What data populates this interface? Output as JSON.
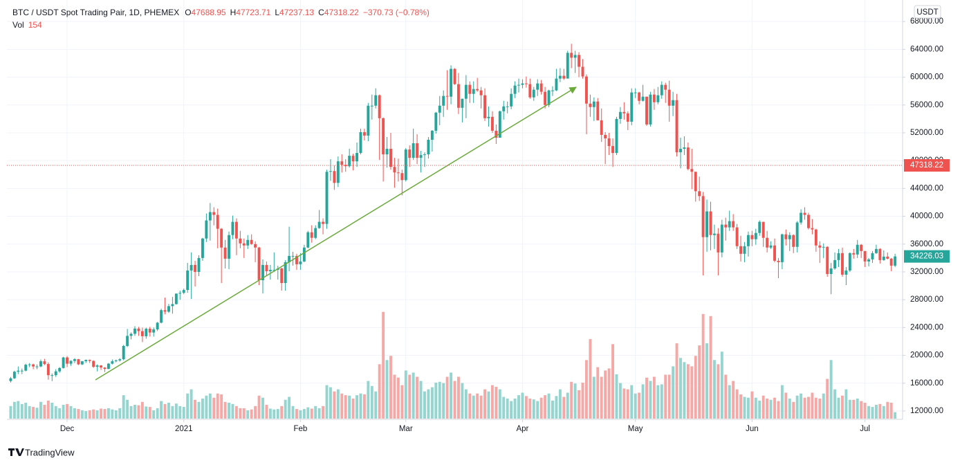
{
  "chart_data": {
    "type": "candlestick",
    "title": "BTC / USDT Spot Trading Pair, 1D, PHEMEX",
    "quote_currency": "USDT",
    "ohlc_legend": {
      "labels": [
        "O",
        "H",
        "L",
        "C"
      ],
      "values": [
        47688.95,
        47723.71,
        47237.13,
        47318.22
      ],
      "change": "−370.73 (−0.78%)"
    },
    "volume_legend": {
      "label": "Vol",
      "value": 154
    },
    "crosshair_price": 47318.22,
    "last_price": 34226.03,
    "open": [
      16300,
      16700,
      17650,
      17800,
      17800,
      18650,
      18700,
      18400,
      18400,
      19150,
      18750,
      17150,
      17150,
      17700,
      18180,
      19700,
      18800,
      19200,
      19450,
      18700,
      19150,
      19350,
      19200,
      18350,
      18550,
      18250,
      18050,
      18800,
      19150,
      19270,
      19440,
      21350,
      22800,
      23100,
      23850,
      23480,
      22750,
      23830,
      23280,
      23730,
      24700,
      26500,
      26280,
      27080,
      27370,
      28880,
      28990,
      29400,
      32200,
      33000,
      32000,
      34000,
      36800,
      39400,
      40600,
      40200,
      38200,
      35500,
      33900,
      37300,
      39200,
      36800,
      36100,
      35800,
      36600,
      36000,
      35500,
      30800,
      33000,
      32100,
      32300,
      32300,
      32500,
      30400,
      33400,
      34300,
      34300,
      33100,
      33500,
      35500,
      37700,
      36900,
      38300,
      39200,
      38900,
      46400,
      46500,
      44800,
      47900,
      47400,
      47200,
      48700,
      47900,
      49100,
      52100,
      51600,
      55900,
      55900,
      57400,
      54100,
      48900,
      49700,
      47100,
      46300,
      46200,
      45200,
      49600,
      48400,
      50500,
      48400,
      48800,
      48900,
      51000,
      52300,
      54900,
      55900,
      57300,
      57200,
      61200,
      59000,
      55600,
      56900,
      58900,
      57600,
      58300,
      58100,
      57400,
      54100,
      54300,
      52300,
      51300,
      55100,
      55800,
      55800,
      57600,
      58800,
      58900,
      59100,
      59000,
      57100,
      58200,
      59100,
      57900,
      56000,
      58100,
      58100,
      59800,
      60200,
      59800,
      63500,
      62800,
      63200,
      61500,
      60100,
      56200,
      55700,
      56500,
      53800,
      51700,
      51200,
      50100,
      49100,
      54000,
      55000,
      54800,
      53600,
      57800,
      57800,
      56600,
      57200,
      53200,
      57500,
      56400,
      57400,
      58900,
      58200,
      55900,
      56700,
      49200,
      49700,
      49900,
      46800,
      46400,
      43600,
      42900,
      37000,
      40700,
      37300,
      37500,
      34800,
      38800,
      38400,
      39300,
      38400,
      35700,
      34600,
      35700,
      37300,
      36700,
      37600,
      39200,
      36900,
      35500,
      35800,
      33600,
      33400,
      37400,
      36700,
      37300,
      35600,
      39100,
      40500,
      40200,
      38300,
      38100,
      35800,
      35500,
      35600,
      31700,
      32500,
      33700,
      34700,
      31600,
      32200,
      34700,
      34500,
      35900,
      35000,
      33500,
      33800,
      34700,
      35300,
      33700,
      34200,
      33900,
      32900
    ],
    "high": [
      16900,
      17800,
      18400,
      18100,
      18800,
      18900,
      18800,
      18700,
      19400,
      19500,
      19000,
      17400,
      18000,
      18300,
      19800,
      19900,
      19300,
      19600,
      19500,
      19200,
      19400,
      19400,
      19300,
      18700,
      18600,
      18300,
      18900,
      19400,
      19400,
      19600,
      21500,
      23800,
      23300,
      24200,
      24100,
      24000,
      24000,
      24100,
      24000,
      24800,
      26700,
      28300,
      27400,
      28400,
      28900,
      29300,
      29600,
      33300,
      34800,
      33600,
      34400,
      36900,
      40400,
      41900,
      41300,
      41100,
      38300,
      36600,
      37800,
      40100,
      39700,
      37900,
      36800,
      37300,
      37400,
      36400,
      35600,
      33800,
      33500,
      33000,
      34800,
      32900,
      32600,
      33700,
      38500,
      34900,
      34600,
      34700,
      35900,
      37900,
      38700,
      38700,
      40900,
      39700,
      46700,
      48200,
      47300,
      48600,
      48900,
      48200,
      49700,
      49000,
      50600,
      52600,
      52600,
      56300,
      57500,
      58400,
      57500,
      54200,
      51400,
      52000,
      48400,
      48300,
      46700,
      49800,
      50200,
      52600,
      51800,
      49400,
      49200,
      51400,
      52400,
      55000,
      57300,
      58100,
      61000,
      61700,
      61300,
      60600,
      56900,
      60300,
      59400,
      59400,
      59900,
      58600,
      58400,
      55800,
      55100,
      53200,
      55200,
      56600,
      56500,
      58400,
      59400,
      59800,
      59700,
      60100,
      59800,
      58600,
      59700,
      59600,
      58600,
      58200,
      58700,
      61200,
      61300,
      61200,
      63800,
      64800,
      63800,
      63600,
      62600,
      60400,
      57500,
      57100,
      57000,
      55500,
      52100,
      52000,
      51200,
      54300,
      55700,
      56400,
      55100,
      58400,
      58400,
      57900,
      58900,
      57200,
      57900,
      58300,
      58600,
      59400,
      59200,
      59500,
      57900,
      57600,
      51300,
      51500,
      50600,
      49700,
      46400,
      45700,
      43500,
      42400,
      42100,
      38800,
      38300,
      39500,
      39800,
      40800,
      40300,
      38900,
      37200,
      36300,
      37800,
      37900,
      38200,
      39400,
      39200,
      37900,
      36400,
      36800,
      34000,
      37500,
      38100,
      37700,
      37400,
      39300,
      41000,
      41300,
      40500,
      39600,
      38200,
      36400,
      36100,
      35700,
      33300,
      34800,
      35300,
      35500,
      32700,
      34800,
      35300,
      36600,
      36000,
      35000,
      34000,
      35000,
      35900,
      35400,
      35100,
      34800,
      34000,
      34600
    ],
    "low": [
      16100,
      16600,
      17300,
      17300,
      17700,
      18300,
      18000,
      18000,
      18300,
      18600,
      16500,
      16300,
      16900,
      17500,
      18100,
      18300,
      18500,
      18900,
      18600,
      18600,
      18900,
      18900,
      18200,
      17700,
      17900,
      17600,
      18000,
      18700,
      19000,
      19100,
      19300,
      21200,
      22300,
      22800,
      22800,
      21900,
      22400,
      22700,
      22700,
      23500,
      24600,
      25900,
      26100,
      26000,
      27300,
      28000,
      28800,
      29000,
      28100,
      29900,
      31400,
      33600,
      36300,
      36500,
      38700,
      35400,
      30400,
      32500,
      32400,
      36700,
      34400,
      35400,
      34000,
      35300,
      35900,
      33400,
      30100,
      28900,
      31400,
      30900,
      32000,
      30900,
      29300,
      29300,
      32100,
      32900,
      32300,
      32300,
      33400,
      35400,
      36200,
      36700,
      38200,
      37400,
      38200,
      45100,
      43800,
      44200,
      46300,
      46400,
      47000,
      46600,
      47100,
      48900,
      50900,
      50800,
      53900,
      55500,
      48100,
      45000,
      47000,
      46700,
      44100,
      45000,
      43000,
      45000,
      47100,
      48100,
      47500,
      46300,
      47100,
      48300,
      49300,
      51900,
      53100,
      54300,
      55300,
      56100,
      58900,
      54700,
      53500,
      54100,
      56300,
      56300,
      57900,
      55500,
      53700,
      52900,
      52000,
      50400,
      51300,
      53900,
      54800,
      55400,
      57000,
      57800,
      58400,
      58500,
      56900,
      56600,
      57300,
      57500,
      55500,
      55700,
      57300,
      58000,
      59300,
      59600,
      59800,
      61300,
      60600,
      60000,
      59800,
      51800,
      54300,
      53700,
      53800,
      50700,
      47500,
      48800,
      47100,
      48800,
      53300,
      53900,
      52400,
      53100,
      57000,
      56100,
      56500,
      53000,
      52900,
      55300,
      56100,
      56900,
      56300,
      53600,
      54400,
      48600,
      46900,
      48800,
      46600,
      43900,
      42100,
      42200,
      31500,
      34900,
      35100,
      35300,
      31500,
      34100,
      36500,
      37900,
      37900,
      35300,
      33500,
      33400,
      34200,
      35700,
      35900,
      37200,
      35600,
      34800,
      35300,
      33400,
      31100,
      32400,
      35800,
      35000,
      34700,
      34800,
      38800,
      39500,
      38100,
      37400,
      34900,
      33300,
      34000,
      31300,
      28800,
      32300,
      32700,
      31300,
      30100,
      32000,
      33900,
      34000,
      34000,
      32700,
      32800,
      33300,
      34600,
      33200,
      33600,
      33800,
      32100,
      32700
    ],
    "close": [
      16700,
      17650,
      17800,
      17800,
      18650,
      18700,
      18400,
      18400,
      19150,
      18750,
      17150,
      17150,
      17700,
      18180,
      19700,
      18800,
      19200,
      19450,
      18700,
      19150,
      19350,
      19200,
      18350,
      18550,
      18250,
      18050,
      18800,
      19150,
      19270,
      19440,
      21350,
      22800,
      23100,
      23850,
      23480,
      22750,
      23830,
      23280,
      23730,
      24700,
      26500,
      26280,
      27080,
      27370,
      28880,
      28990,
      29400,
      32200,
      33000,
      32000,
      34000,
      36800,
      39400,
      40600,
      40200,
      38200,
      35500,
      33900,
      37300,
      39200,
      36800,
      36100,
      35800,
      36600,
      36000,
      35500,
      30800,
      33000,
      32100,
      32300,
      32300,
      32500,
      30400,
      33400,
      34300,
      34300,
      33100,
      33500,
      35500,
      37700,
      36900,
      38300,
      39200,
      38900,
      46400,
      46500,
      44800,
      47900,
      47400,
      47200,
      48700,
      47900,
      49100,
      52100,
      51600,
      55900,
      55900,
      57400,
      54100,
      48900,
      49700,
      47100,
      46300,
      46200,
      45200,
      49600,
      48400,
      50500,
      48400,
      48800,
      48900,
      51000,
      52300,
      54900,
      55900,
      57300,
      57200,
      61200,
      59000,
      55600,
      56900,
      58900,
      57600,
      58300,
      58100,
      57400,
      54100,
      54300,
      52300,
      51300,
      55100,
      55800,
      55800,
      57600,
      58800,
      58900,
      59100,
      59000,
      57100,
      58200,
      59100,
      57900,
      56000,
      58100,
      58100,
      59800,
      60200,
      59800,
      63500,
      62800,
      63200,
      61500,
      60100,
      56200,
      55700,
      56500,
      53800,
      51700,
      51200,
      50100,
      49100,
      54000,
      55000,
      54800,
      53600,
      57800,
      57800,
      56600,
      57200,
      53200,
      57500,
      56400,
      57400,
      58900,
      58200,
      55900,
      56700,
      49200,
      49700,
      49900,
      46800,
      46400,
      43600,
      42900,
      37000,
      40700,
      37300,
      37500,
      34800,
      38800,
      38400,
      39300,
      38400,
      35700,
      34600,
      35700,
      37300,
      36700,
      37600,
      39200,
      36900,
      35500,
      35800,
      33600,
      33400,
      37400,
      36700,
      37300,
      35600,
      39100,
      40500,
      40200,
      38300,
      38100,
      35800,
      35500,
      35600,
      31700,
      32500,
      33700,
      34700,
      31600,
      32200,
      34700,
      34500,
      35900,
      35000,
      33500,
      33800,
      34700,
      35300,
      33700,
      34200,
      33900,
      32900,
      34226.03
    ],
    "volume": [
      300,
      400,
      420,
      350,
      380,
      300,
      280,
      260,
      400,
      330,
      430,
      380,
      300,
      250,
      330,
      350,
      300,
      250,
      230,
      200,
      180,
      200,
      220,
      200,
      240,
      230,
      250,
      220,
      200,
      250,
      560,
      450,
      300,
      330,
      320,
      400,
      290,
      280,
      200,
      250,
      420,
      350,
      380,
      300,
      360,
      300,
      280,
      600,
      700,
      450,
      400,
      480,
      550,
      600,
      500,
      600,
      580,
      400,
      380,
      350,
      300,
      250,
      250,
      200,
      220,
      300,
      550,
      500,
      330,
      240,
      220,
      230,
      300,
      450,
      520,
      300,
      230,
      200,
      230,
      270,
      240,
      300,
      250,
      300,
      800,
      750,
      650,
      700,
      600,
      560,
      550,
      480,
      560,
      600,
      580,
      900,
      780,
      650,
      1300,
      2550,
      1400,
      1500,
      1050,
      980,
      800,
      1150,
      1050,
      1100,
      1000,
      900,
      650,
      700,
      750,
      860,
      880,
      850,
      1000,
      1100,
      900,
      1000,
      850,
      700,
      600,
      550,
      600,
      550,
      700,
      650,
      800,
      760,
      700,
      520,
      480,
      420,
      480,
      560,
      620,
      540,
      480,
      460,
      420,
      500,
      560,
      600,
      430,
      540,
      700,
      520,
      620,
      880,
      840,
      680,
      860,
      1400,
      1900,
      1000,
      1230,
      1000,
      1150,
      1200,
      1780,
      1060,
      850,
      720,
      700,
      800,
      600,
      620,
      820,
      980,
      900,
      1000,
      800,
      820,
      1050,
      1050,
      1250,
      1800,
      1450,
      1350,
      1300,
      1250,
      1500,
      1750,
      2500,
      1800,
      2450,
      1400,
      1300,
      1600,
      1050,
      800,
      900,
      700,
      580,
      520,
      500,
      650,
      500,
      430,
      550,
      480,
      450,
      500,
      420,
      800,
      620,
      480,
      400,
      550,
      600,
      500,
      520,
      620,
      500,
      480,
      600,
      950,
      1400,
      700,
      500,
      550,
      700,
      450,
      450,
      480,
      420,
      380,
      300,
      280,
      330,
      350,
      300,
      400,
      380,
      154
    ],
    "xlim": [
      -1,
      237
    ],
    "xticks": [
      {
        "value": 15,
        "label": "Dec"
      },
      {
        "value": 46,
        "label": "2021"
      },
      {
        "value": 77,
        "label": "Feb"
      },
      {
        "value": 105,
        "label": "Mar"
      },
      {
        "value": 136,
        "label": "Apr"
      },
      {
        "value": 166,
        "label": "May"
      },
      {
        "value": 197,
        "label": "Jun"
      },
      {
        "value": 227,
        "label": "Jul"
      }
    ],
    "ylim": [
      10900,
      71100
    ],
    "yticks": [
      {
        "value": 12000,
        "label": "12000.00"
      },
      {
        "value": 16000,
        "label": "16000.00"
      },
      {
        "value": 20000,
        "label": "20000.00"
      },
      {
        "value": 24000,
        "label": "24000.00"
      },
      {
        "value": 28000,
        "label": "28000.00"
      },
      {
        "value": 32000,
        "label": "32000.00"
      },
      {
        "value": 36000,
        "label": "36000.00"
      },
      {
        "value": 40000,
        "label": "40000.00"
      },
      {
        "value": 44000,
        "label": "44000.00"
      },
      {
        "value": 48000,
        "label": "48000.00"
      },
      {
        "value": 52000,
        "label": "52000.00"
      },
      {
        "value": 56000,
        "label": "56000.00"
      },
      {
        "value": 60000,
        "label": "60000.00"
      },
      {
        "value": 64000,
        "label": "64000.00"
      },
      {
        "value": 68000,
        "label": "68000.00"
      }
    ],
    "volume_ylim": [
      0,
      10000
    ],
    "up_color": "#26a69a",
    "down_color": "#ef5350",
    "up_volume_color": "#94d5cf",
    "down_volume_color": "#f6a8a6",
    "grid": true
  },
  "footer": {
    "brand": "TradingView"
  }
}
